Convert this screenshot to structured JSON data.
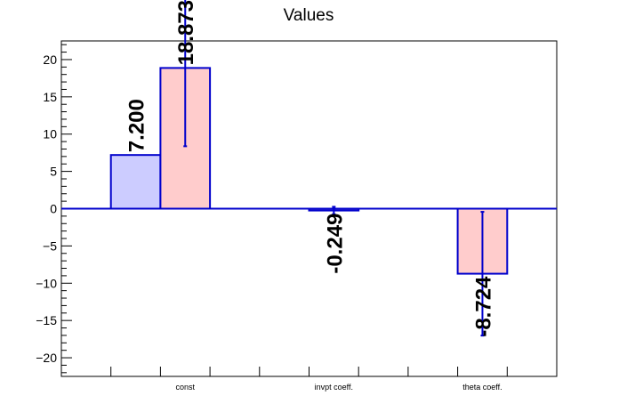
{
  "chart_data": {
    "type": "bar",
    "title": "Values",
    "categories": [
      "const",
      "invpt coeff.",
      "theta coeff."
    ],
    "category_bins": [
      2,
      5,
      8
    ],
    "bin_count": 10,
    "ylim": [
      -22.5,
      22.5
    ],
    "yticks": [
      -20,
      -15,
      -10,
      -5,
      0,
      5,
      10,
      15,
      20
    ],
    "ytick_labels": [
      "−20",
      "−15",
      "−10",
      "−5",
      "0",
      "5",
      "10",
      "15",
      "20"
    ],
    "grid": false,
    "series": [
      {
        "fill": "#ccccff",
        "stroke": "#0000cc",
        "bars": [
          {
            "bin": 1,
            "value": 7.2,
            "label": "7.200"
          }
        ]
      },
      {
        "fill": "#ffcccc",
        "stroke": "#0000cc",
        "bars": [
          {
            "bin": 2,
            "value": 18.873,
            "error": 10.5,
            "label": "18.873"
          },
          {
            "bin": 5,
            "value": -0.249,
            "error": 0.5,
            "label": "-0.249"
          },
          {
            "bin": 8,
            "value": -8.724,
            "error": 8.3,
            "label": "-8.724"
          }
        ]
      }
    ]
  }
}
